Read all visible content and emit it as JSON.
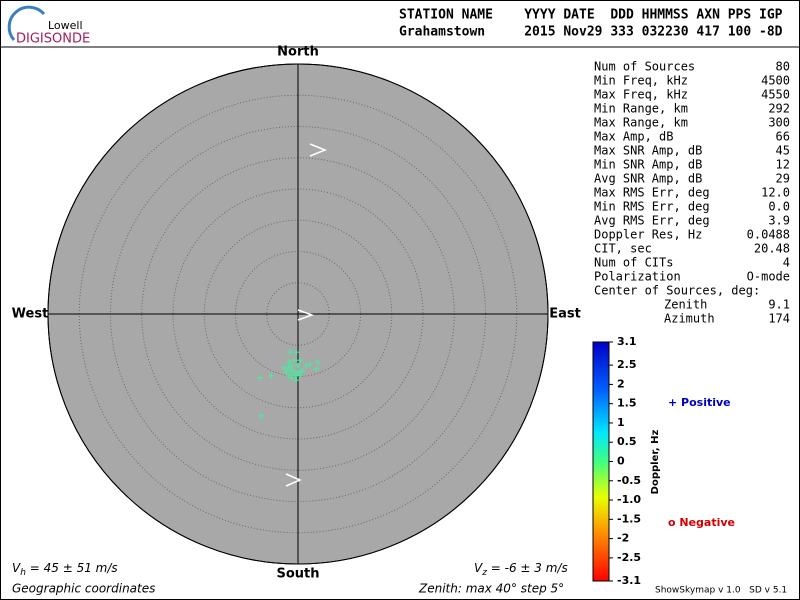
{
  "chart_data": {
    "type": "skymap",
    "logo": {
      "top": "Lowell",
      "bottom": "DIGISONDE"
    },
    "header": {
      "line1": "STATION NAME    YYYY DATE  DDD HHMMSS AXN PPS IGP",
      "line2": "Grahamstown     2015 Nov29 333 032230 417 100 -8D"
    },
    "directions": {
      "north": "North",
      "south": "South",
      "east": "East",
      "west": "West"
    },
    "xlim": [
      -40,
      40
    ],
    "ylim": [
      -40,
      40
    ],
    "rings": [
      5,
      10,
      15,
      20,
      25,
      30,
      35,
      40
    ],
    "x": [
      -1.3,
      -0.3,
      -1.4,
      -0.6,
      0.3,
      1.3,
      1.9,
      3.2,
      2.9,
      -1.6,
      -1.1,
      -0.6,
      0,
      0.6,
      -1.9,
      -1.4,
      -1.0,
      -0.3,
      0.3,
      -0.3,
      -6.1,
      -4.3,
      -5.9,
      -2.2,
      -1.0,
      0
    ],
    "y": [
      -6.1,
      -6.1,
      -7.7,
      -7.4,
      -7.4,
      -8.3,
      -8.0,
      -7.7,
      -8.8,
      -8.6,
      -9.0,
      -9.3,
      -9.3,
      -9.1,
      -9.3,
      -9.9,
      -10.2,
      -9.9,
      -9.8,
      -10.6,
      -10.2,
      -9.9,
      -16.3,
      -8.6,
      -8.3,
      -8.3
    ],
    "point_color": "#40f0a0",
    "stats": [
      [
        "Num of Sources",
        "80"
      ],
      [
        "Min Freq, kHz",
        "4500"
      ],
      [
        "Max Freq, kHz",
        "4550"
      ],
      [
        "Min Range, km",
        "292"
      ],
      [
        "Max Range, km",
        "300"
      ],
      [
        "Max Amp, dB",
        "66"
      ],
      [
        "Max SNR Amp, dB",
        "45"
      ],
      [
        "Min SNR Amp, dB",
        "12"
      ],
      [
        "Avg SNR Amp, dB",
        "29"
      ],
      [
        "Max RMS Err, deg",
        "12.0"
      ],
      [
        "Min RMS Err, deg",
        "0.0"
      ],
      [
        "Avg RMS Err, deg",
        "3.9"
      ],
      [
        "Doppler Res, Hz",
        "0.0488"
      ],
      [
        "CIT, sec",
        "20.48"
      ],
      [
        "Num of CITs",
        "4"
      ],
      [
        "Polarization",
        "O-mode"
      ],
      [
        "Center of Sources, deg:"
      ],
      [
        "Zenith",
        "9.1"
      ],
      [
        "Azimuth",
        "174"
      ]
    ],
    "colorbar": {
      "label": "Doppler, Hz",
      "zlim": [
        -3.1,
        3.1
      ],
      "ticks": [
        3.1,
        2.5,
        2,
        1.5,
        1,
        0.5,
        0,
        -0.5,
        {
          "value": -1,
          "label": "-1.0"
        },
        -1.5,
        -2,
        -2.5,
        -3.1
      ]
    },
    "legend": {
      "positive": "+ Positive",
      "negative": "o Negative"
    },
    "vh": {
      "symbol": "V",
      "sub": "h",
      "text": " = 45 ± 51 m/s"
    },
    "vz": {
      "symbol": "V",
      "sub": "z",
      "text": " = -6 ± 3 m/s"
    },
    "coords": "Geographic coordinates",
    "zenith_note": "Zenith: max 40°  step 5°",
    "version": "ShowSkymap v 1.0   SD v 5.1"
  }
}
